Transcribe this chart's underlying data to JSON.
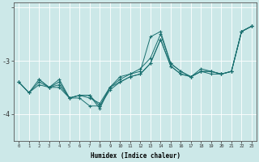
{
  "xlabel": "Humidex (Indice chaleur)",
  "bg_color": "#cce8e8",
  "grid_color": "#ffffff",
  "line_color": "#1a7070",
  "x_ticks": [
    0,
    1,
    2,
    3,
    4,
    5,
    6,
    7,
    8,
    9,
    10,
    11,
    12,
    13,
    14,
    15,
    16,
    17,
    18,
    19,
    20,
    21,
    22,
    23
  ],
  "ylim": [
    -4.5,
    -1.9
  ],
  "yticks": [
    -4,
    -3,
    -2
  ],
  "ytick_labels": [
    "-4",
    "-3",
    ""
  ],
  "line1_x": [
    0,
    1,
    2,
    3,
    4,
    5,
    6,
    7,
    8,
    9,
    10,
    11,
    12,
    13,
    14,
    15,
    16,
    17,
    18,
    19,
    20,
    21,
    22,
    23
  ],
  "line1_y": [
    -3.4,
    -3.6,
    -3.35,
    -3.5,
    -3.4,
    -3.7,
    -3.65,
    -3.65,
    -3.85,
    -3.5,
    -3.35,
    -3.25,
    -3.2,
    -2.55,
    -2.45,
    -3.05,
    -3.2,
    -3.3,
    -3.15,
    -3.2,
    -3.25,
    -3.2,
    -2.45,
    -2.35
  ],
  "line2_x": [
    0,
    1,
    2,
    3,
    4,
    5,
    6,
    7,
    8,
    9,
    10,
    11,
    12,
    13,
    14,
    15,
    16,
    17,
    18,
    19,
    20,
    21,
    22,
    23
  ],
  "line2_y": [
    -3.4,
    -3.6,
    -3.4,
    -3.5,
    -3.45,
    -3.7,
    -3.65,
    -3.7,
    -3.8,
    -3.5,
    -3.4,
    -3.3,
    -3.25,
    -3.05,
    -2.6,
    -3.1,
    -3.25,
    -3.3,
    -3.2,
    -3.2,
    -3.25,
    -3.2,
    -2.45,
    -2.35
  ],
  "line3_x": [
    2,
    3,
    4,
    5,
    6,
    7,
    8,
    9,
    10,
    11,
    12,
    13,
    14,
    15,
    16,
    17,
    18,
    19,
    20,
    21,
    22,
    23
  ],
  "line3_y": [
    -3.35,
    -3.5,
    -3.35,
    -3.7,
    -3.65,
    -3.65,
    -3.9,
    -3.5,
    -3.3,
    -3.25,
    -3.15,
    -2.95,
    -2.5,
    -3.05,
    -3.2,
    -3.3,
    -3.2,
    -3.2,
    -3.25,
    -3.2,
    -2.45,
    -2.35
  ],
  "line4_x": [
    0,
    1,
    2,
    3,
    4,
    5,
    6,
    7,
    8,
    9,
    10,
    11,
    12,
    13,
    14,
    15,
    16,
    17,
    18,
    19,
    20,
    21,
    22,
    23
  ],
  "line4_y": [
    -3.4,
    -3.6,
    -3.45,
    -3.5,
    -3.5,
    -3.7,
    -3.7,
    -3.85,
    -3.85,
    -3.55,
    -3.4,
    -3.3,
    -3.25,
    -3.05,
    -2.6,
    -3.1,
    -3.25,
    -3.3,
    -3.2,
    -3.25,
    -3.25,
    -3.2,
    -2.45,
    -2.35
  ]
}
